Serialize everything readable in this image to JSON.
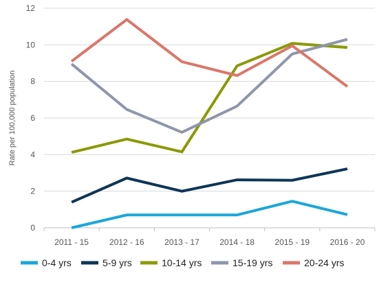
{
  "chart_data": {
    "type": "line",
    "title": "",
    "xlabel": "",
    "ylabel": "Rate per 100,000 population",
    "categories": [
      "2011 - 15",
      "2012 - 16",
      "2013 - 17",
      "2014 - 18",
      "2015 - 19",
      "2016 - 20"
    ],
    "ylim": [
      0,
      12
    ],
    "yticks": [
      0,
      2,
      4,
      6,
      8,
      10,
      12
    ],
    "grid": "horizontal",
    "legend_position": "bottom",
    "series": [
      {
        "name": "0-4 yrs",
        "color": "#1aa6dc",
        "values": [
          0.0,
          0.7,
          0.7,
          0.7,
          1.45,
          0.72
        ]
      },
      {
        "name": "5-9 yrs",
        "color": "#0e3556",
        "values": [
          1.4,
          2.72,
          2.0,
          2.62,
          2.6,
          3.22
        ]
      },
      {
        "name": "10-14 yrs",
        "color": "#8a9a08",
        "values": [
          4.12,
          4.85,
          4.15,
          8.85,
          10.08,
          9.85
        ]
      },
      {
        "name": "15-19 yrs",
        "color": "#8f96ab",
        "values": [
          8.95,
          6.47,
          5.22,
          6.65,
          9.5,
          10.3
        ]
      },
      {
        "name": "20-24 yrs",
        "color": "#da776b",
        "values": [
          9.1,
          11.38,
          9.08,
          8.32,
          9.95,
          7.72
        ]
      }
    ]
  }
}
